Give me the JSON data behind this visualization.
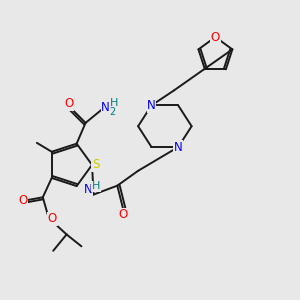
{
  "background_color": "#e8e8e8",
  "bond_color": "#1a1a1a",
  "atom_colors": {
    "N": "#0000ff",
    "O": "#ff0000",
    "S": "#cccc00",
    "H": "#008080",
    "C": "#1a1a1a"
  },
  "figsize": [
    3.0,
    3.0
  ],
  "dpi": 100
}
